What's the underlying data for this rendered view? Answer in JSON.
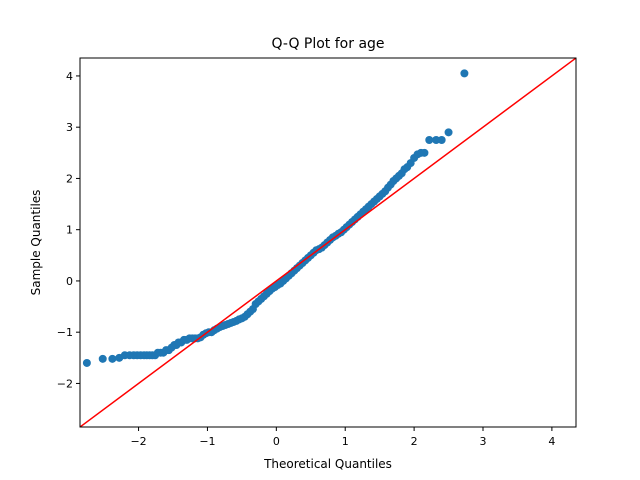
{
  "chart_data": {
    "type": "scatter",
    "title": "Q-Q Plot for age",
    "xlabel": "Theoretical Quantiles",
    "ylabel": "Sample Quantiles",
    "xlim": [
      -2.85,
      4.35
    ],
    "ylim": [
      -2.85,
      4.35
    ],
    "xticks": [
      -2,
      -1,
      0,
      1,
      2,
      3,
      4
    ],
    "yticks": [
      -2,
      -1,
      0,
      1,
      2,
      3,
      4
    ],
    "xtick_labels": [
      "−2",
      "−1",
      "0",
      "1",
      "2",
      "3",
      "4"
    ],
    "ytick_labels": [
      "−2",
      "−1",
      "0",
      "1",
      "2",
      "3",
      "4"
    ],
    "grid": false,
    "colors": {
      "points": "#1f77b4",
      "reference_line": "#ff0000"
    },
    "reference_line": {
      "x": [
        -2.85,
        4.35
      ],
      "y": [
        -2.85,
        4.35
      ]
    },
    "series": [
      {
        "x": [
          -2.75,
          -2.52,
          -2.38,
          -2.28,
          -2.2,
          -2.13,
          -2.07,
          -2.02,
          -1.97,
          -1.92,
          -1.88,
          -1.84,
          -1.8,
          -1.76,
          -1.72,
          -1.68,
          -1.64,
          -1.6,
          -1.56,
          -1.52,
          -1.48,
          -1.45,
          -1.42,
          -1.38,
          -1.34,
          -1.3,
          -1.26,
          -1.22,
          -1.18,
          -1.14,
          -1.1,
          -1.06,
          -1.02,
          -0.98,
          -0.94,
          -0.9,
          -0.86,
          -0.82,
          -0.78,
          -0.74,
          -0.7,
          -0.66,
          -0.62,
          -0.58,
          -0.54,
          -0.5,
          -0.46,
          -0.42,
          -0.38,
          -0.34,
          -0.3,
          -0.26,
          -0.22,
          -0.18,
          -0.14,
          -0.1,
          -0.06,
          -0.02,
          0.02,
          0.06,
          0.1,
          0.14,
          0.18,
          0.22,
          0.26,
          0.3,
          0.34,
          0.38,
          0.42,
          0.46,
          0.5,
          0.54,
          0.58,
          0.62,
          0.66,
          0.7,
          0.74,
          0.78,
          0.82,
          0.86,
          0.9,
          0.94,
          0.98,
          1.02,
          1.06,
          1.1,
          1.14,
          1.18,
          1.22,
          1.26,
          1.3,
          1.34,
          1.38,
          1.42,
          1.46,
          1.5,
          1.54,
          1.58,
          1.62,
          1.66,
          1.7,
          1.74,
          1.78,
          1.82,
          1.86,
          1.9,
          1.95,
          2.0,
          2.05,
          2.1,
          2.15,
          2.22,
          2.32,
          2.4,
          2.5,
          2.73
        ],
        "y": [
          -1.6,
          -1.52,
          -1.52,
          -1.5,
          -1.45,
          -1.45,
          -1.45,
          -1.45,
          -1.45,
          -1.45,
          -1.45,
          -1.45,
          -1.45,
          -1.45,
          -1.4,
          -1.4,
          -1.4,
          -1.35,
          -1.35,
          -1.3,
          -1.25,
          -1.25,
          -1.2,
          -1.2,
          -1.15,
          -1.15,
          -1.12,
          -1.12,
          -1.12,
          -1.12,
          -1.1,
          -1.05,
          -1.02,
          -1.0,
          -1.0,
          -0.96,
          -0.93,
          -0.9,
          -0.88,
          -0.86,
          -0.84,
          -0.82,
          -0.8,
          -0.78,
          -0.75,
          -0.73,
          -0.7,
          -0.65,
          -0.6,
          -0.55,
          -0.45,
          -0.4,
          -0.35,
          -0.3,
          -0.25,
          -0.2,
          -0.15,
          -0.12,
          -0.08,
          -0.05,
          0.0,
          0.05,
          0.1,
          0.15,
          0.2,
          0.25,
          0.3,
          0.35,
          0.4,
          0.45,
          0.5,
          0.55,
          0.6,
          0.62,
          0.65,
          0.7,
          0.75,
          0.8,
          0.85,
          0.88,
          0.92,
          0.95,
          1.0,
          1.05,
          1.1,
          1.15,
          1.2,
          1.25,
          1.3,
          1.35,
          1.4,
          1.45,
          1.5,
          1.55,
          1.6,
          1.65,
          1.7,
          1.75,
          1.82,
          1.88,
          1.95,
          2.0,
          2.05,
          2.1,
          2.18,
          2.22,
          2.3,
          2.4,
          2.47,
          2.5,
          2.5,
          2.75,
          2.75,
          2.75,
          2.9,
          4.05
        ]
      }
    ]
  }
}
